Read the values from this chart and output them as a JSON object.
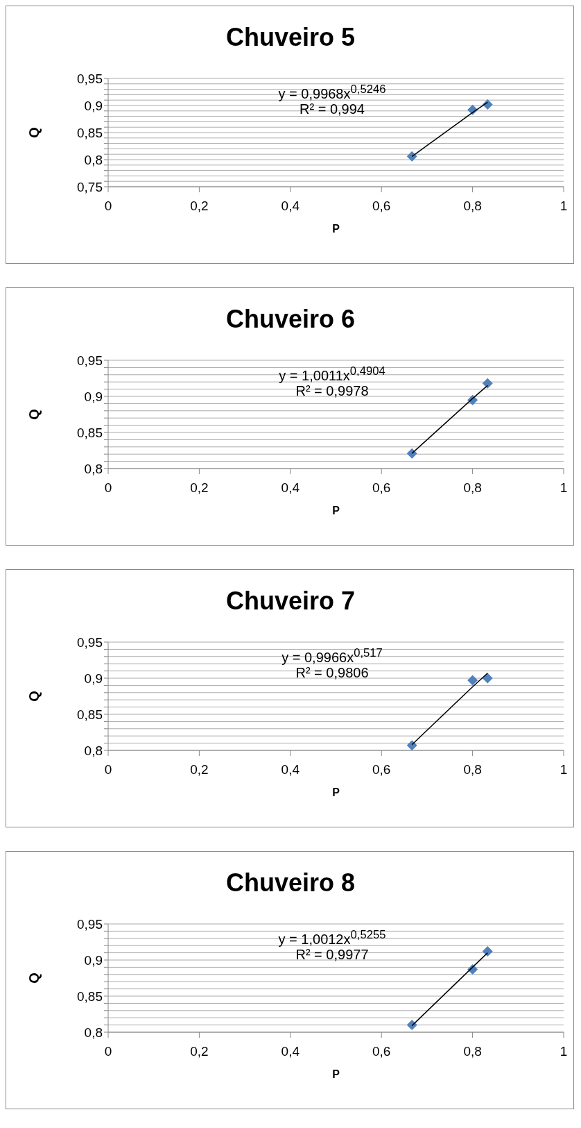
{
  "chart_data": [
    {
      "type": "scatter",
      "title": "Chuveiro 5",
      "xlabel": "P",
      "ylabel": "Q",
      "xlim": [
        0,
        1
      ],
      "xticks": [
        {
          "value": 0,
          "label": "0"
        },
        {
          "value": 0.2,
          "label": "0,2"
        },
        {
          "value": 0.4,
          "label": "0,4"
        },
        {
          "value": 0.6,
          "label": "0,6"
        },
        {
          "value": 0.8,
          "label": "0,8"
        },
        {
          "value": 1,
          "label": "1"
        }
      ],
      "ylim": [
        0.75,
        0.95
      ],
      "yticks": [
        {
          "value": 0.75,
          "label": "0,75"
        },
        {
          "value": 0.76,
          "label": null
        },
        {
          "value": 0.77,
          "label": null
        },
        {
          "value": 0.78,
          "label": null
        },
        {
          "value": 0.79,
          "label": null
        },
        {
          "value": 0.8,
          "label": "0,8"
        },
        {
          "value": 0.81,
          "label": null
        },
        {
          "value": 0.82,
          "label": null
        },
        {
          "value": 0.83,
          "label": null
        },
        {
          "value": 0.84,
          "label": null
        },
        {
          "value": 0.85,
          "label": "0,85"
        },
        {
          "value": 0.86,
          "label": null
        },
        {
          "value": 0.87,
          "label": null
        },
        {
          "value": 0.88,
          "label": null
        },
        {
          "value": 0.89,
          "label": null
        },
        {
          "value": 0.9,
          "label": "0,9"
        },
        {
          "value": 0.91,
          "label": null
        },
        {
          "value": 0.92,
          "label": null
        },
        {
          "value": 0.93,
          "label": null
        },
        {
          "value": 0.94,
          "label": null
        },
        {
          "value": 0.95,
          "label": "0,95"
        }
      ],
      "grid": "y",
      "legend": false,
      "x": [
        0.667,
        0.8,
        0.833
      ],
      "series": [
        {
          "color": "#4f81bd",
          "marker": "diamond",
          "values": [
            0.806,
            0.892,
            0.902
          ]
        },
        {
          "type": "line",
          "marker": "none",
          "color": "#000000",
          "x": [
            0.667,
            0.8,
            0.833
          ],
          "values": [
            0.806,
            0.887,
            0.906
          ]
        }
      ],
      "annotations": [
        "y = 0,9968x$^{0,5246}$",
        "R² = 0,994"
      ]
    },
    {
      "type": "scatter",
      "title": "Chuveiro 6",
      "xlabel": "P",
      "ylabel": "Q",
      "xlim": [
        0,
        1
      ],
      "xticks": [
        {
          "value": 0,
          "label": "0"
        },
        {
          "value": 0.2,
          "label": "0,2"
        },
        {
          "value": 0.4,
          "label": "0,4"
        },
        {
          "value": 0.6,
          "label": "0,6"
        },
        {
          "value": 0.8,
          "label": "0,8"
        },
        {
          "value": 1,
          "label": "1"
        }
      ],
      "ylim": [
        0.8,
        0.95
      ],
      "yticks": [
        {
          "value": 0.8,
          "label": "0,8"
        },
        {
          "value": 0.81,
          "label": null
        },
        {
          "value": 0.82,
          "label": null
        },
        {
          "value": 0.83,
          "label": null
        },
        {
          "value": 0.84,
          "label": null
        },
        {
          "value": 0.85,
          "label": "0,85"
        },
        {
          "value": 0.86,
          "label": null
        },
        {
          "value": 0.87,
          "label": null
        },
        {
          "value": 0.88,
          "label": null
        },
        {
          "value": 0.89,
          "label": null
        },
        {
          "value": 0.9,
          "label": "0,9"
        },
        {
          "value": 0.91,
          "label": null
        },
        {
          "value": 0.92,
          "label": null
        },
        {
          "value": 0.93,
          "label": null
        },
        {
          "value": 0.94,
          "label": null
        },
        {
          "value": 0.95,
          "label": "0,95"
        }
      ],
      "grid": "y",
      "legend": false,
      "x": [
        0.667,
        0.8,
        0.833
      ],
      "series": [
        {
          "color": "#4f81bd",
          "marker": "diamond",
          "values": [
            0.821,
            0.895,
            0.918
          ]
        },
        {
          "type": "line",
          "marker": "none",
          "color": "#000000",
          "x": [
            0.667,
            0.8,
            0.833
          ],
          "values": [
            0.821,
            0.897,
            0.915
          ]
        }
      ],
      "annotations": [
        "y = 1,0011x$^{0,4904}$",
        "R² = 0,9978"
      ]
    },
    {
      "type": "scatter",
      "title": "Chuveiro 7",
      "xlabel": "P",
      "ylabel": "Q",
      "xlim": [
        0,
        1
      ],
      "xticks": [
        {
          "value": 0,
          "label": "0"
        },
        {
          "value": 0.2,
          "label": "0,2"
        },
        {
          "value": 0.4,
          "label": "0,4"
        },
        {
          "value": 0.6,
          "label": "0,6"
        },
        {
          "value": 0.8,
          "label": "0,8"
        },
        {
          "value": 1,
          "label": "1"
        }
      ],
      "ylim": [
        0.8,
        0.95
      ],
      "yticks": [
        {
          "value": 0.8,
          "label": "0,8"
        },
        {
          "value": 0.81,
          "label": null
        },
        {
          "value": 0.82,
          "label": null
        },
        {
          "value": 0.83,
          "label": null
        },
        {
          "value": 0.84,
          "label": null
        },
        {
          "value": 0.85,
          "label": "0,85"
        },
        {
          "value": 0.86,
          "label": null
        },
        {
          "value": 0.87,
          "label": null
        },
        {
          "value": 0.88,
          "label": null
        },
        {
          "value": 0.89,
          "label": null
        },
        {
          "value": 0.9,
          "label": "0,9"
        },
        {
          "value": 0.91,
          "label": null
        },
        {
          "value": 0.92,
          "label": null
        },
        {
          "value": 0.93,
          "label": null
        },
        {
          "value": 0.94,
          "label": null
        },
        {
          "value": 0.95,
          "label": "0,95"
        }
      ],
      "grid": "y",
      "legend": false,
      "x": [
        0.667,
        0.8,
        0.833
      ],
      "series": [
        {
          "color": "#4f81bd",
          "marker": "diamond",
          "values": [
            0.807,
            0.897,
            0.9
          ]
        },
        {
          "type": "line",
          "marker": "none",
          "color": "#000000",
          "x": [
            0.667,
            0.8,
            0.833
          ],
          "values": [
            0.808,
            0.888,
            0.907
          ]
        }
      ],
      "annotations": [
        "y = 0,9966x$^{0,517}$",
        "R² = 0,9806"
      ]
    },
    {
      "type": "scatter",
      "title": "Chuveiro 8",
      "xlabel": "P",
      "ylabel": "Q",
      "xlim": [
        0,
        1
      ],
      "xticks": [
        {
          "value": 0,
          "label": "0"
        },
        {
          "value": 0.2,
          "label": "0,2"
        },
        {
          "value": 0.4,
          "label": "0,4"
        },
        {
          "value": 0.6,
          "label": "0,6"
        },
        {
          "value": 0.8,
          "label": "0,8"
        },
        {
          "value": 1,
          "label": "1"
        }
      ],
      "ylim": [
        0.8,
        0.95
      ],
      "yticks": [
        {
          "value": 0.8,
          "label": "0,8"
        },
        {
          "value": 0.81,
          "label": null
        },
        {
          "value": 0.82,
          "label": null
        },
        {
          "value": 0.83,
          "label": null
        },
        {
          "value": 0.84,
          "label": null
        },
        {
          "value": 0.85,
          "label": "0,85"
        },
        {
          "value": 0.86,
          "label": null
        },
        {
          "value": 0.87,
          "label": null
        },
        {
          "value": 0.88,
          "label": null
        },
        {
          "value": 0.89,
          "label": null
        },
        {
          "value": 0.9,
          "label": "0,9"
        },
        {
          "value": 0.91,
          "label": null
        },
        {
          "value": 0.92,
          "label": null
        },
        {
          "value": 0.93,
          "label": null
        },
        {
          "value": 0.94,
          "label": null
        },
        {
          "value": 0.95,
          "label": "0,95"
        }
      ],
      "grid": "y",
      "legend": false,
      "x": [
        0.667,
        0.8,
        0.833
      ],
      "series": [
        {
          "color": "#4f81bd",
          "marker": "diamond",
          "values": [
            0.81,
            0.887,
            0.912
          ]
        },
        {
          "type": "line",
          "marker": "none",
          "color": "#000000",
          "x": [
            0.667,
            0.8,
            0.833
          ],
          "values": [
            0.809,
            0.89,
            0.91
          ]
        }
      ],
      "annotations": [
        "y = 1,0012x$^{0,5255}$",
        "R² = 0,9977"
      ]
    }
  ]
}
